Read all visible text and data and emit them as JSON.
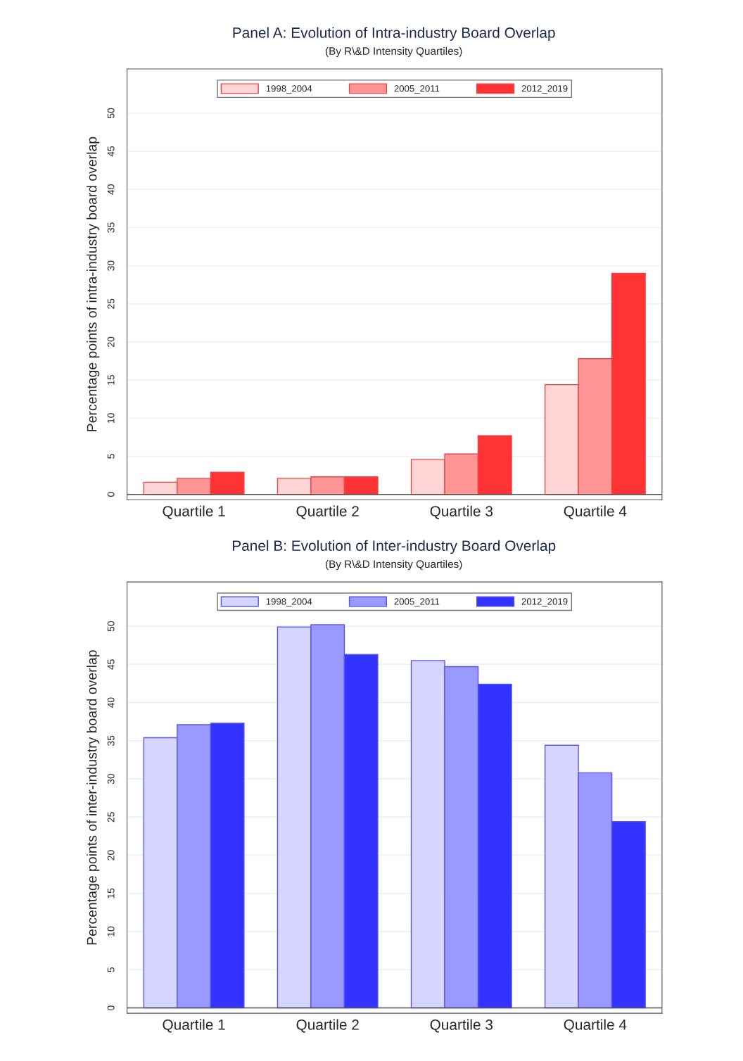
{
  "chart_data": [
    {
      "type": "bar",
      "title": "Panel A: Evolution of Intra-industry Board Overlap",
      "subtitle": "(By R\\&D Intensity Quartiles)",
      "ylabel": "Percentage points of intra-industry board overlap",
      "categories": [
        "Quartile 1",
        "Quartile 2",
        "Quartile 3",
        "Quartile 4"
      ],
      "series": [
        {
          "name": "1998_2004",
          "color": "#ffd5d5",
          "values": [
            1.6,
            2.1,
            4.6,
            14.4
          ]
        },
        {
          "name": "2005_2011",
          "color": "#ff9595",
          "values": [
            2.1,
            2.3,
            5.3,
            17.8
          ]
        },
        {
          "name": "2012_2019",
          "color": "#ff3333",
          "values": [
            2.9,
            2.3,
            7.7,
            29.0
          ]
        }
      ],
      "ylim": [
        -0.7,
        55.8
      ],
      "yticks": [
        0,
        5,
        10,
        15,
        20,
        25,
        30,
        35,
        40,
        45,
        50
      ],
      "grid": "y",
      "legend": "top"
    },
    {
      "type": "bar",
      "title": "Panel B: Evolution of Inter-industry Board Overlap",
      "subtitle": "(By R\\&D Intensity Quartiles)",
      "ylabel": "Percentage points of inter-industry board overlap",
      "categories": [
        "Quartile 1",
        "Quartile 2",
        "Quartile 3",
        "Quartile 4"
      ],
      "series": [
        {
          "name": "1998_2004",
          "color": "#d5d5fd",
          "values": [
            35.4,
            49.9,
            45.5,
            34.4
          ]
        },
        {
          "name": "2005_2011",
          "color": "#9999ff",
          "values": [
            37.1,
            50.2,
            44.7,
            30.8
          ]
        },
        {
          "name": "2012_2019",
          "color": "#3333ff",
          "values": [
            37.3,
            46.3,
            42.4,
            24.4
          ]
        }
      ],
      "ylim": [
        -0.7,
        55.8
      ],
      "yticks": [
        0,
        5,
        10,
        15,
        20,
        25,
        30,
        35,
        40,
        45,
        50
      ],
      "grid": "y",
      "legend": "top"
    }
  ]
}
